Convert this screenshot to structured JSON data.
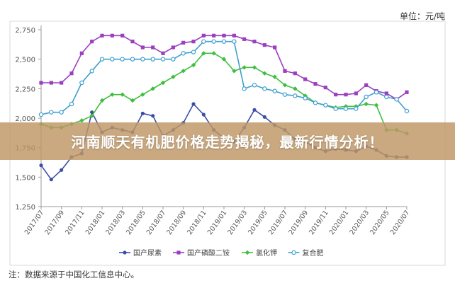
{
  "unit_label": "单位：元/吨",
  "banner_title": "河南顺天有机肥价格走势揭秘，最新行情分析！",
  "footnote": "注：数据来源于中国化工信息中心。",
  "chart_data": {
    "type": "line",
    "ylim": [
      1250,
      2750
    ],
    "yticks": [
      1250,
      1500,
      1750,
      2000,
      2250,
      2500,
      2750
    ],
    "ytick_labels": [
      "1,250",
      "1,500",
      "1,750",
      "2,000",
      "2,250",
      "2,500",
      "2,750"
    ],
    "x": [
      "2017/07",
      "2017/08",
      "2017/09",
      "2017/10",
      "2017/11",
      "2017/12",
      "2018/01",
      "2018/02",
      "2018/03",
      "2018/04",
      "2018/05",
      "2018/06",
      "2018/07",
      "2018/08",
      "2018/09",
      "2018/10",
      "2018/11",
      "2018/12",
      "2019/01",
      "2019/02",
      "2019/03",
      "2019/04",
      "2019/05",
      "2019/06",
      "2019/07",
      "2019/08",
      "2019/09",
      "2019/10",
      "2019/11",
      "2019/12",
      "2020/01",
      "2020/02",
      "2020/03",
      "2020/04",
      "2020/05",
      "2020/06",
      "2020/07"
    ],
    "xtick_labels": [
      "2017/07",
      "2017/09",
      "2017/11",
      "2018/01",
      "2018/03",
      "2018/05",
      "2018/07",
      "2018/09",
      "2018/11",
      "2019/01",
      "2019/03",
      "2019/05",
      "2019/07",
      "2019/09",
      "2019/11",
      "2020/01",
      "2020/03",
      "2020/05",
      "2020/07"
    ],
    "legend_position": "bottom",
    "grid": false,
    "series": [
      {
        "name": "国产尿素",
        "color": "#3b4fa8",
        "marker": "circle",
        "values": [
          1600,
          1480,
          1560,
          1670,
          1700,
          2050,
          1880,
          1920,
          1900,
          1880,
          2040,
          2020,
          1850,
          1900,
          1960,
          2120,
          2030,
          1900,
          1830,
          1800,
          1920,
          2070,
          2010,
          1940,
          1900,
          1820,
          1800,
          1750,
          1720,
          1740,
          1730,
          1720,
          1760,
          1730,
          1680,
          1670,
          1670
        ]
      },
      {
        "name": "国产磷酸二铵",
        "color": "#9b3fbf",
        "marker": "square",
        "values": [
          2300,
          2300,
          2300,
          2380,
          2550,
          2650,
          2700,
          2700,
          2700,
          2650,
          2600,
          2600,
          2550,
          2600,
          2640,
          2650,
          2700,
          2700,
          2700,
          2700,
          2670,
          2650,
          2620,
          2600,
          2400,
          2380,
          2330,
          2290,
          2260,
          2200,
          2200,
          2210,
          2280,
          2230,
          2210,
          2160,
          2220
        ]
      },
      {
        "name": "氯化钾",
        "color": "#3fbf3f",
        "marker": "diamond",
        "values": [
          1950,
          1920,
          1920,
          1950,
          1980,
          2020,
          2150,
          2200,
          2200,
          2150,
          2200,
          2250,
          2300,
          2350,
          2400,
          2450,
          2550,
          2550,
          2500,
          2400,
          2430,
          2430,
          2380,
          2350,
          2280,
          2250,
          2190,
          2130,
          2110,
          2090,
          2100,
          2100,
          2120,
          2110,
          1900,
          1900,
          1870
        ]
      },
      {
        "name": "复合肥",
        "color": "#3f9fd0",
        "marker": "circle-open",
        "values": [
          2030,
          2050,
          2050,
          2120,
          2300,
          2400,
          2500,
          2500,
          2500,
          2500,
          2500,
          2500,
          2500,
          2500,
          2550,
          2560,
          2650,
          2650,
          2650,
          2650,
          2250,
          2280,
          2250,
          2230,
          2200,
          2190,
          2170,
          2130,
          2110,
          2080,
          2080,
          2080,
          2180,
          2220,
          2180,
          2160,
          2060
        ]
      }
    ]
  }
}
